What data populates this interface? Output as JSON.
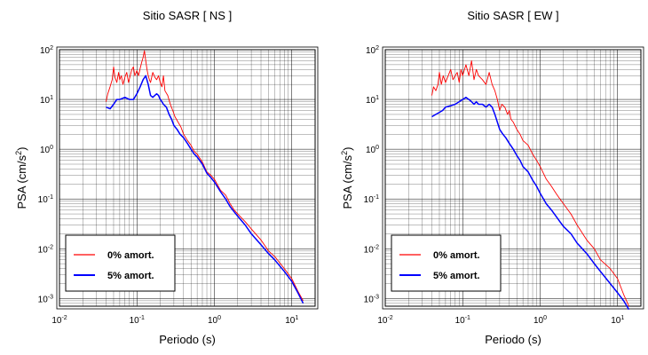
{
  "figure": {
    "legend_labels": [
      "0% amort.",
      "5% amort."
    ]
  },
  "chart_data": [
    {
      "type": "line",
      "title": "Sitio SASR [ NS ]",
      "xlabel": "Periodo (s)",
      "ylabel": "PSA (cm/s²)",
      "xscale": "log",
      "yscale": "log",
      "xlim": [
        0.01,
        20
      ],
      "ylim": [
        0.0007,
        100
      ],
      "x_ticks": [
        "10-2",
        "10-1",
        "100",
        "101"
      ],
      "y_ticks": [
        "10-3",
        "10-2",
        "10-1",
        "100",
        "101",
        "102"
      ],
      "grid": true,
      "legend_position": "bottom-left",
      "series": [
        {
          "name": "0% amort.",
          "color": "#ff0000",
          "x": [
            0.04,
            0.042,
            0.045,
            0.048,
            0.05,
            0.052,
            0.055,
            0.058,
            0.06,
            0.063,
            0.066,
            0.07,
            0.074,
            0.078,
            0.082,
            0.086,
            0.09,
            0.094,
            0.1,
            0.105,
            0.11,
            0.115,
            0.12,
            0.125,
            0.13,
            0.135,
            0.14,
            0.145,
            0.15,
            0.16,
            0.17,
            0.18,
            0.19,
            0.2,
            0.21,
            0.22,
            0.23,
            0.25,
            0.27,
            0.29,
            0.31,
            0.34,
            0.37,
            0.4,
            0.45,
            0.5,
            0.55,
            0.6,
            0.7,
            0.8,
            0.9,
            1.0,
            1.2,
            1.4,
            1.6,
            1.8,
            2.0,
            2.5,
            3.0,
            4.0,
            5.0,
            6.0,
            8.0,
            10.0,
            12.0,
            14.0
          ],
          "values": [
            9,
            13,
            18,
            25,
            45,
            28,
            22,
            35,
            25,
            30,
            20,
            28,
            35,
            22,
            30,
            40,
            45,
            30,
            38,
            30,
            42,
            55,
            70,
            95,
            60,
            40,
            30,
            25,
            22,
            35,
            28,
            25,
            30,
            22,
            18,
            30,
            15,
            12,
            8,
            6,
            4.5,
            3.5,
            2.8,
            2.0,
            1.5,
            1.2,
            0.9,
            0.8,
            0.55,
            0.35,
            0.3,
            0.25,
            0.15,
            0.12,
            0.08,
            0.06,
            0.05,
            0.035,
            0.025,
            0.015,
            0.009,
            0.007,
            0.004,
            0.0025,
            0.0014,
            0.0009
          ]
        },
        {
          "name": "5% amort.",
          "color": "#0000ff",
          "x": [
            0.04,
            0.045,
            0.05,
            0.055,
            0.06,
            0.07,
            0.08,
            0.09,
            0.1,
            0.11,
            0.12,
            0.13,
            0.14,
            0.15,
            0.16,
            0.17,
            0.18,
            0.19,
            0.2,
            0.21,
            0.22,
            0.24,
            0.26,
            0.28,
            0.3,
            0.33,
            0.36,
            0.4,
            0.45,
            0.5,
            0.55,
            0.6,
            0.7,
            0.8,
            0.9,
            1.0,
            1.2,
            1.4,
            1.6,
            1.8,
            2.0,
            2.5,
            3.0,
            4.0,
            5.0,
            6.0,
            8.0,
            10.0,
            12.0,
            14.0
          ],
          "values": [
            7,
            6.5,
            8,
            10,
            10,
            11,
            10,
            10,
            13,
            18,
            25,
            30,
            20,
            12,
            11,
            12,
            13,
            12,
            10,
            9,
            8,
            7,
            5,
            4,
            3,
            2.5,
            2,
            1.7,
            1.3,
            1.0,
            0.8,
            0.7,
            0.5,
            0.33,
            0.27,
            0.22,
            0.14,
            0.1,
            0.07,
            0.055,
            0.045,
            0.03,
            0.02,
            0.012,
            0.008,
            0.006,
            0.0035,
            0.0022,
            0.0013,
            0.0008
          ]
        }
      ]
    },
    {
      "type": "line",
      "title": "Sitio SASR [ EW ]",
      "xlabel": "Periodo (s)",
      "ylabel": "PSA (cm/s²)",
      "xscale": "log",
      "yscale": "log",
      "xlim": [
        0.01,
        20
      ],
      "ylim": [
        0.0007,
        100
      ],
      "x_ticks": [
        "10-2",
        "10-1",
        "100",
        "101"
      ],
      "y_ticks": [
        "10-3",
        "10-2",
        "10-1",
        "100",
        "101",
        "102"
      ],
      "grid": true,
      "legend_position": "bottom-left",
      "series": [
        {
          "name": "0% amort.",
          "color": "#ff0000",
          "x": [
            0.04,
            0.042,
            0.045,
            0.048,
            0.05,
            0.053,
            0.056,
            0.06,
            0.065,
            0.07,
            0.075,
            0.08,
            0.085,
            0.09,
            0.095,
            0.1,
            0.11,
            0.12,
            0.13,
            0.14,
            0.15,
            0.16,
            0.18,
            0.2,
            0.22,
            0.24,
            0.26,
            0.28,
            0.3,
            0.32,
            0.35,
            0.38,
            0.4,
            0.42,
            0.45,
            0.5,
            0.55,
            0.6,
            0.7,
            0.8,
            0.9,
            1.0,
            1.2,
            1.4,
            1.6,
            1.8,
            2.0,
            2.5,
            3.0,
            4.0,
            5.0,
            6.0,
            8.0,
            10.0,
            12.0,
            14.0
          ],
          "values": [
            12,
            18,
            15,
            20,
            35,
            20,
            30,
            22,
            30,
            40,
            25,
            30,
            35,
            22,
            40,
            30,
            50,
            30,
            60,
            25,
            40,
            30,
            25,
            20,
            35,
            20,
            15,
            10,
            6,
            8,
            7,
            5,
            6,
            4,
            3.5,
            2.5,
            2.0,
            1.5,
            1.2,
            0.8,
            0.6,
            0.45,
            0.25,
            0.18,
            0.13,
            0.1,
            0.08,
            0.05,
            0.03,
            0.015,
            0.01,
            0.006,
            0.004,
            0.0025,
            0.0012,
            0.0007
          ]
        },
        {
          "name": "5% amort.",
          "color": "#0000ff",
          "x": [
            0.04,
            0.045,
            0.05,
            0.055,
            0.06,
            0.07,
            0.08,
            0.09,
            0.1,
            0.11,
            0.12,
            0.13,
            0.14,
            0.15,
            0.16,
            0.17,
            0.18,
            0.2,
            0.22,
            0.24,
            0.26,
            0.28,
            0.3,
            0.33,
            0.36,
            0.4,
            0.45,
            0.5,
            0.55,
            0.6,
            0.7,
            0.8,
            0.9,
            1.0,
            1.2,
            1.4,
            1.6,
            1.8,
            2.0,
            2.5,
            3.0,
            4.0,
            5.0,
            6.0,
            8.0,
            10.0,
            12.0,
            14.0
          ],
          "values": [
            4.5,
            5,
            5.5,
            6,
            7,
            7.5,
            8,
            9,
            10,
            11,
            10,
            9,
            8,
            9,
            8,
            8,
            8,
            7,
            8,
            7,
            5,
            3.5,
            2.5,
            2.0,
            1.7,
            1.3,
            1.0,
            0.75,
            0.6,
            0.45,
            0.35,
            0.24,
            0.18,
            0.13,
            0.08,
            0.06,
            0.045,
            0.035,
            0.028,
            0.02,
            0.013,
            0.008,
            0.005,
            0.0035,
            0.002,
            0.0013,
            0.0009,
            0.0006
          ]
        }
      ]
    }
  ]
}
